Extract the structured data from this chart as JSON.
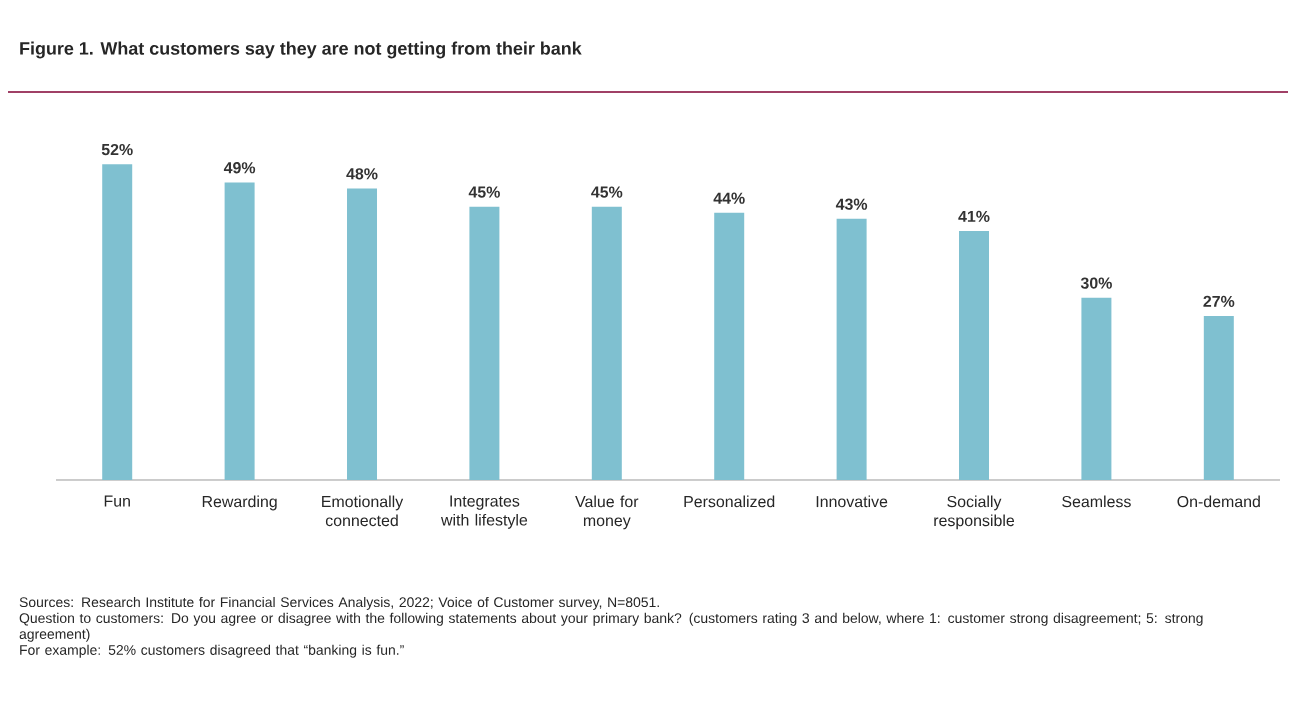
{
  "chart_data": {
    "type": "bar",
    "title": "Figure 1. What customers say they are not getting from their bank",
    "categories": [
      "Fun",
      "Rewarding",
      "Emotionally connected",
      "Integrates with lifestyle",
      "Value for money",
      "Personalized",
      "Innovative",
      "Socially responsible",
      "Seamless",
      "On-demand"
    ],
    "values": [
      52,
      49,
      48,
      45,
      45,
      44,
      43,
      41,
      30,
      27
    ],
    "value_labels": [
      "52%",
      "49%",
      "48%",
      "45%",
      "45%",
      "44%",
      "43%",
      "41%",
      "30%",
      "27%"
    ],
    "color": "#7fc0d0",
    "annotations": [
      "Sources: Research Institute for Financial Services Analysis, 2022; Voice of Customer survey, N=8051.",
      "Question to customers: Do you agree or disagree with the following statements about your primary bank? (customers rating 3 and below, where 1: customer strong disagreement; 5: strong agreement)",
      "For example: 52% customers disagreed that “banking is fun.”"
    ]
  }
}
